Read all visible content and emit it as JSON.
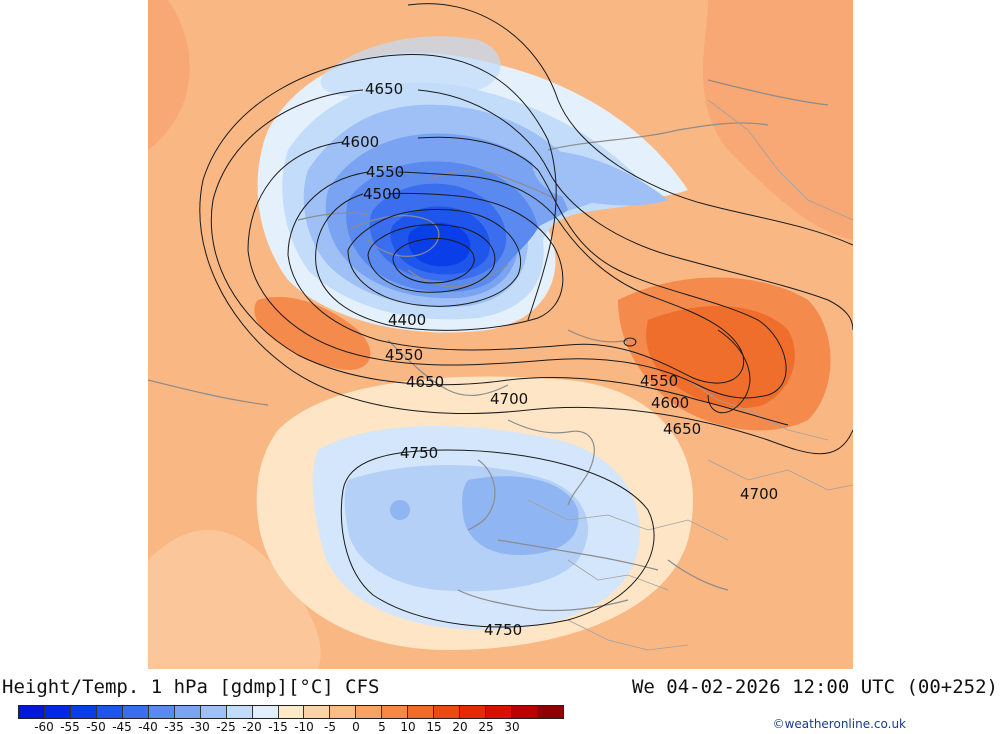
{
  "title": "Height/Temp. 1 hPa [gdmp][°C] CFS",
  "datetime": "We 04-02-2026 12:00 UTC (00+252)",
  "credit": "©weatheronline.co.uk",
  "colorbar": {
    "colors": [
      "#0018dc",
      "#0028e6",
      "#0a3ee8",
      "#1e55ea",
      "#3a6eee",
      "#5a8af0",
      "#7aa4f2",
      "#9ec0f6",
      "#c2dcfa",
      "#e2eefc",
      "#fde8c8",
      "#fcd3a6",
      "#fabd86",
      "#f7a366",
      "#f48844",
      "#f06a28",
      "#ec4a12",
      "#e62a06",
      "#d81002",
      "#bc0000",
      "#900000"
    ],
    "labels": [
      "-60",
      "-55",
      "-50",
      "-45",
      "-40",
      "-35",
      "-30",
      "-25",
      "-20",
      "-15",
      "-10",
      "-5",
      "0",
      "5",
      "10",
      "15",
      "20",
      "25",
      "30"
    ]
  },
  "contour_labels": {
    "c4650_top": "4650",
    "c4600_top": "4600",
    "c4550_top": "4550",
    "c4500_top": "4500",
    "c4400": "4400",
    "c4550_mid": "4550",
    "c4650_mid": "4650",
    "c4700_mid": "4700",
    "c4550_right": "4550",
    "c4600_right": "4600",
    "c4650_right": "4650",
    "c4700_right": "4700",
    "c4750_top": "4750",
    "c4750_bottom": "4750"
  }
}
